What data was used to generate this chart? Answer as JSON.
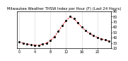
{
  "title": "Milwaukee Weather THSW Index per Hour (F) (Last 24 Hours)",
  "hours": [
    0,
    1,
    2,
    3,
    4,
    5,
    6,
    7,
    8,
    9,
    10,
    11,
    12,
    13,
    14,
    15,
    16,
    17,
    18,
    19,
    20,
    21,
    22,
    23
  ],
  "values": [
    32,
    30,
    28,
    27,
    26,
    26,
    28,
    30,
    35,
    42,
    52,
    63,
    72,
    80,
    76,
    68,
    60,
    54,
    48,
    44,
    41,
    38,
    36,
    34
  ],
  "line_color": "#dd0000",
  "marker_color": "#000000",
  "background_color": "#ffffff",
  "grid_color": "#aaaaaa",
  "ylim": [
    20,
    90
  ],
  "yticks": [
    20,
    30,
    40,
    50,
    60,
    70,
    80,
    90
  ],
  "xticks": [
    0,
    4,
    8,
    12,
    16,
    20
  ],
  "xlim": [
    -0.5,
    23.5
  ],
  "tick_fontsize": 3.5,
  "title_fontsize": 3.8,
  "grid_vlines": [
    0,
    4,
    8,
    12,
    16,
    20
  ]
}
